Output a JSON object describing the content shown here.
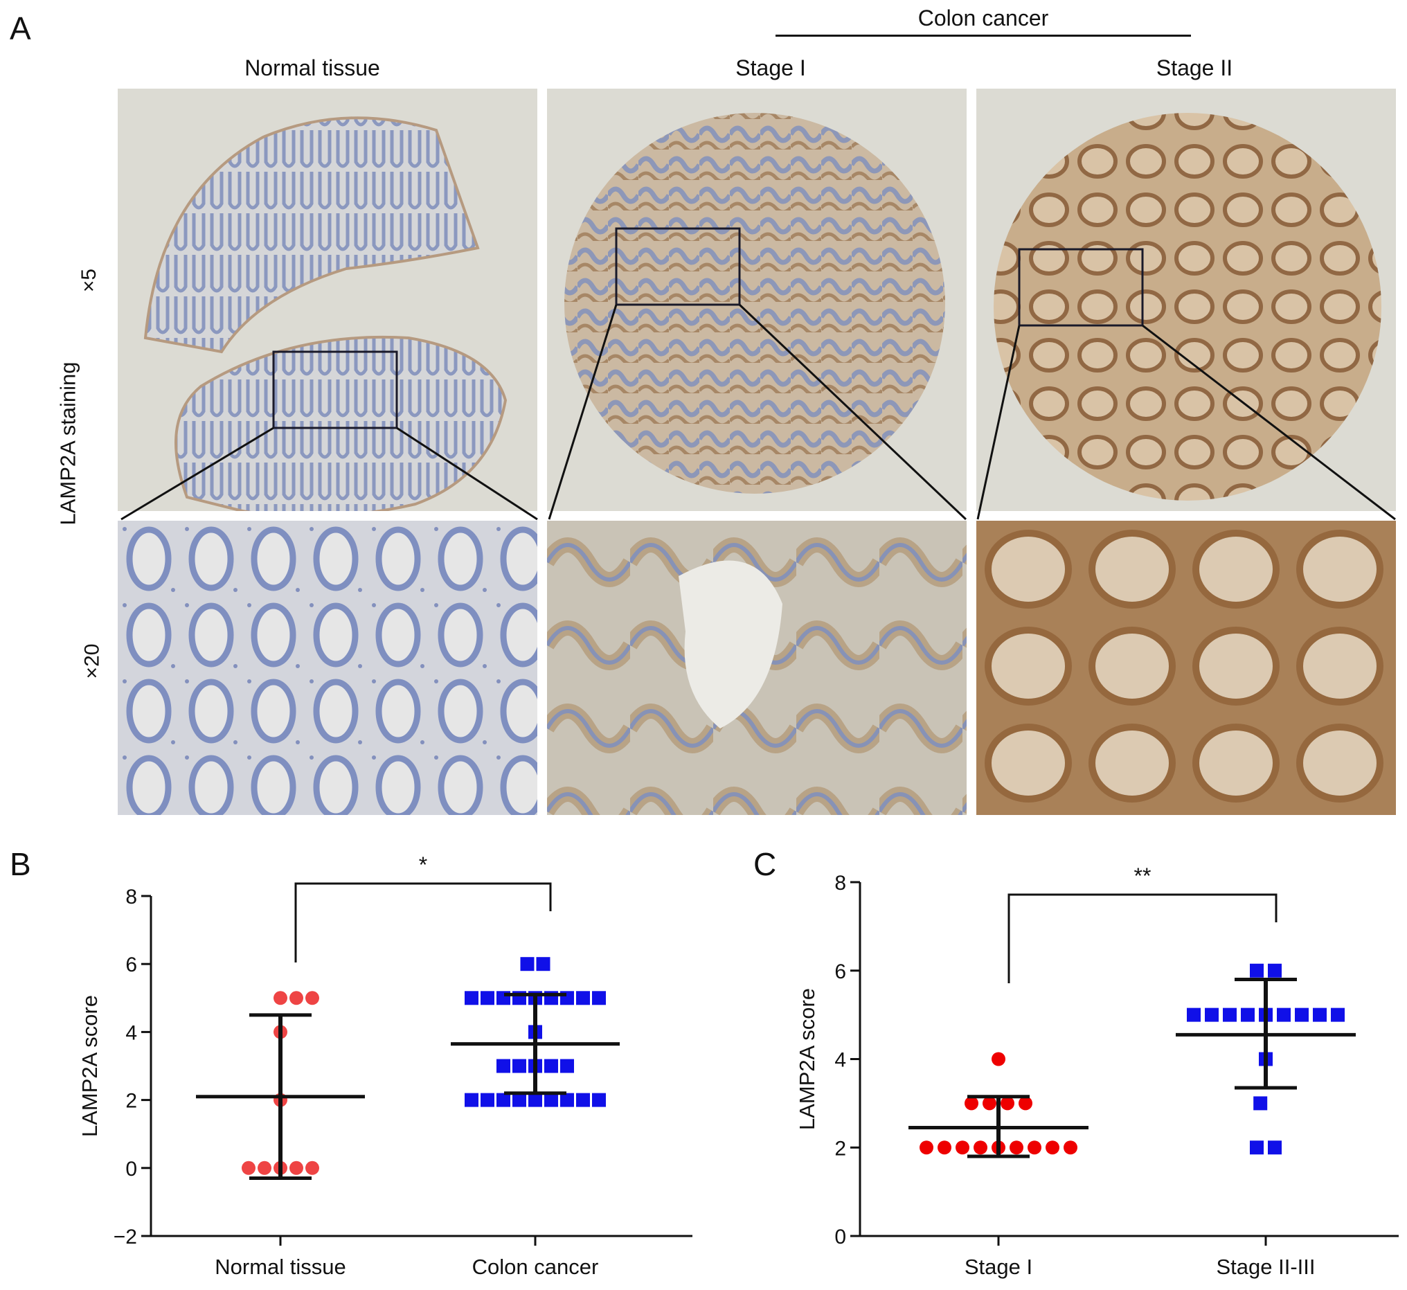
{
  "panel_a": {
    "letter": "A",
    "group_label": "Colon cancer",
    "columns": [
      "Normal tissue",
      "Stage I",
      "Stage II"
    ],
    "row_labels": [
      "×5",
      "×20"
    ],
    "y_label": "LAMP2A staining",
    "colors": {
      "background": "#d8d7cf",
      "hematoxylin": "#7f8fb8",
      "dab_light": "#c8ab86",
      "dab_dark": "#9a7146"
    }
  },
  "panel_b": {
    "letter": "B"
  },
  "panel_c": {
    "letter": "C"
  },
  "chart_data": [
    {
      "type": "scatter",
      "panel": "B",
      "ylabel": "LAMP2A score",
      "ylim": [
        -2,
        8
      ],
      "yticks": [
        "-2",
        "0",
        "2",
        "4",
        "6",
        "8"
      ],
      "categories": [
        "Normal tissue",
        "Colon cancer"
      ],
      "series": [
        {
          "category": "Normal tissue",
          "marker": "circle",
          "color": "#ee4444",
          "points": [
            [
              0,
              5
            ],
            [
              1,
              5
            ],
            [
              2,
              5
            ],
            [
              0,
              4
            ],
            [
              0,
              2
            ],
            [
              -2,
              0
            ],
            [
              -1,
              0
            ],
            [
              0,
              0
            ],
            [
              1,
              0
            ],
            [
              2,
              0
            ]
          ],
          "mean": 2.1,
          "sd_upper": 4.5,
          "sd_lower": -0.3
        },
        {
          "category": "Colon cancer",
          "marker": "square",
          "color": "#1010e8",
          "points": [
            [
              -0.5,
              6
            ],
            [
              0.5,
              6
            ],
            [
              -4,
              5
            ],
            [
              -3,
              5
            ],
            [
              -2,
              5
            ],
            [
              -1,
              5
            ],
            [
              0,
              5
            ],
            [
              1,
              5
            ],
            [
              2,
              5
            ],
            [
              3,
              5
            ],
            [
              4,
              5
            ],
            [
              0,
              4
            ],
            [
              -2,
              3
            ],
            [
              -1,
              3
            ],
            [
              0,
              3
            ],
            [
              1,
              3
            ],
            [
              2,
              3
            ],
            [
              -4,
              2
            ],
            [
              -3,
              2
            ],
            [
              -2,
              2
            ],
            [
              -1,
              2
            ],
            [
              0,
              2
            ],
            [
              1,
              2
            ],
            [
              2,
              2
            ],
            [
              3,
              2
            ],
            [
              4,
              2
            ]
          ],
          "mean": 3.65,
          "sd_upper": 5.1,
          "sd_lower": 2.2
        }
      ],
      "significance": "*"
    },
    {
      "type": "scatter",
      "panel": "C",
      "ylabel": "LAMP2A score",
      "ylim": [
        0,
        8
      ],
      "yticks": [
        "0",
        "2",
        "4",
        "6",
        "8"
      ],
      "categories": [
        "Stage I",
        "Stage II-III"
      ],
      "series": [
        {
          "category": "Stage I",
          "marker": "circle",
          "color": "#ee0000",
          "points": [
            [
              0,
              4
            ],
            [
              -1.5,
              3
            ],
            [
              -0.5,
              3
            ],
            [
              0.5,
              3
            ],
            [
              1.5,
              3
            ],
            [
              -4,
              2
            ],
            [
              -3,
              2
            ],
            [
              -2,
              2
            ],
            [
              -1,
              2
            ],
            [
              0,
              2
            ],
            [
              1,
              2
            ],
            [
              2,
              2
            ],
            [
              3,
              2
            ],
            [
              4,
              2
            ]
          ],
          "mean": 2.45,
          "sd_upper": 3.15,
          "sd_lower": 1.8
        },
        {
          "category": "Stage II-III",
          "marker": "square",
          "color": "#1010e8",
          "points": [
            [
              -0.5,
              6
            ],
            [
              0.5,
              6
            ],
            [
              -4,
              5
            ],
            [
              -3,
              5
            ],
            [
              -2,
              5
            ],
            [
              -1,
              5
            ],
            [
              0,
              5
            ],
            [
              1,
              5
            ],
            [
              2,
              5
            ],
            [
              3,
              5
            ],
            [
              4,
              5
            ],
            [
              0,
              4
            ],
            [
              -0.3,
              3
            ],
            [
              -0.5,
              2
            ],
            [
              0.5,
              2
            ]
          ],
          "mean": 4.55,
          "sd_upper": 5.8,
          "sd_lower": 3.35
        }
      ],
      "significance": "**"
    }
  ]
}
